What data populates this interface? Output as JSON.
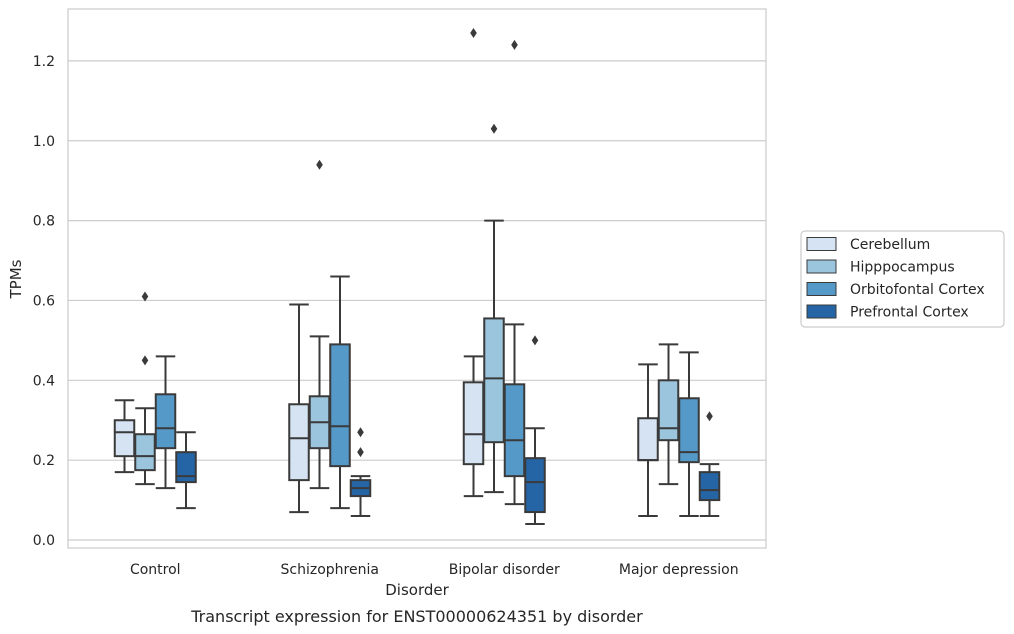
{
  "chart_data": {
    "type": "box",
    "xlabel": "Disorder",
    "ylabel": "TPMs",
    "caption": "Transcript expression for ENST00000624351 by disorder",
    "categories": [
      "Control",
      "Schizophrenia",
      "Bipolar disorder",
      "Major depression"
    ],
    "ylim": [
      -0.02,
      1.33
    ],
    "yticks": [
      "0.0",
      "0.2",
      "0.4",
      "0.6",
      "0.8",
      "1.0",
      "1.2"
    ],
    "grid": "horizontal",
    "legend_position": "right",
    "series": [
      {
        "name": "Cerebellum",
        "color": "#d5e3f2",
        "boxes": [
          {
            "whislo": 0.17,
            "q1": 0.21,
            "med": 0.27,
            "q3": 0.3,
            "whishi": 0.35,
            "fliers": []
          },
          {
            "whislo": 0.07,
            "q1": 0.15,
            "med": 0.255,
            "q3": 0.34,
            "whishi": 0.59,
            "fliers": []
          },
          {
            "whislo": 0.11,
            "q1": 0.19,
            "med": 0.265,
            "q3": 0.395,
            "whishi": 0.46,
            "fliers": [
              1.27
            ]
          },
          {
            "whislo": 0.06,
            "q1": 0.2,
            "med": 0.2,
            "q3": 0.305,
            "whishi": 0.44,
            "fliers": []
          }
        ]
      },
      {
        "name": "Hipppocampus",
        "color": "#9ac5dd",
        "boxes": [
          {
            "whislo": 0.14,
            "q1": 0.175,
            "med": 0.21,
            "q3": 0.265,
            "whishi": 0.33,
            "fliers": [
              0.45,
              0.61
            ]
          },
          {
            "whislo": 0.13,
            "q1": 0.23,
            "med": 0.295,
            "q3": 0.36,
            "whishi": 0.51,
            "fliers": [
              0.94
            ]
          },
          {
            "whislo": 0.12,
            "q1": 0.245,
            "med": 0.405,
            "q3": 0.555,
            "whishi": 0.8,
            "fliers": [
              1.03
            ]
          },
          {
            "whislo": 0.14,
            "q1": 0.25,
            "med": 0.28,
            "q3": 0.4,
            "whishi": 0.49,
            "fliers": []
          }
        ]
      },
      {
        "name": "Orbitofontal Cortex",
        "color": "#5599c8",
        "boxes": [
          {
            "whislo": 0.13,
            "q1": 0.23,
            "med": 0.28,
            "q3": 0.365,
            "whishi": 0.46,
            "fliers": []
          },
          {
            "whislo": 0.08,
            "q1": 0.185,
            "med": 0.285,
            "q3": 0.49,
            "whishi": 0.66,
            "fliers": []
          },
          {
            "whislo": 0.09,
            "q1": 0.16,
            "med": 0.25,
            "q3": 0.39,
            "whishi": 0.54,
            "fliers": [
              1.24
            ]
          },
          {
            "whislo": 0.06,
            "q1": 0.195,
            "med": 0.22,
            "q3": 0.355,
            "whishi": 0.47,
            "fliers": []
          }
        ]
      },
      {
        "name": "Prefrontal Cortex",
        "color": "#2565a6",
        "boxes": [
          {
            "whislo": 0.08,
            "q1": 0.145,
            "med": 0.16,
            "q3": 0.22,
            "whishi": 0.27,
            "fliers": []
          },
          {
            "whislo": 0.06,
            "q1": 0.11,
            "med": 0.13,
            "q3": 0.15,
            "whishi": 0.16,
            "fliers": [
              0.22,
              0.27
            ]
          },
          {
            "whislo": 0.04,
            "q1": 0.07,
            "med": 0.145,
            "q3": 0.205,
            "whishi": 0.28,
            "fliers": [
              0.5
            ]
          },
          {
            "whislo": 0.06,
            "q1": 0.1,
            "med": 0.125,
            "q3": 0.17,
            "whishi": 0.19,
            "fliers": [
              0.31
            ]
          }
        ]
      }
    ]
  }
}
